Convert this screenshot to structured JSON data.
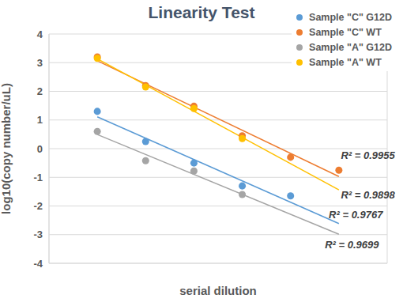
{
  "chart_data": {
    "type": "scatter",
    "title": "Linearity Test",
    "x_label": "serial dilution",
    "y_label": "log10(copy number/uL)",
    "x": [
      1,
      2,
      3,
      4,
      5,
      6
    ],
    "xlim": [
      0,
      7
    ],
    "xticks": [
      0,
      1,
      2,
      3,
      4,
      5,
      6,
      7
    ],
    "ylim": [
      -4,
      4
    ],
    "yticks": [
      -4,
      -3,
      -2,
      -1,
      0,
      1,
      2,
      3,
      4
    ],
    "grid": true,
    "legend": "upper right",
    "tick_labels": "y",
    "series": [
      {
        "name": "Sample \"C\" G12D",
        "color": "#5b9bd5",
        "marker": "circle",
        "values": [
          1.3,
          0.25,
          -0.5,
          -1.3,
          -1.65,
          null
        ],
        "annotation": "R² = 0.9767"
      },
      {
        "name": "Sample \"C\" WT",
        "color": "#ed7d31",
        "marker": "circle",
        "values": [
          3.2,
          2.2,
          1.48,
          0.45,
          -0.3,
          -0.75
        ],
        "annotation": "R² = 0.9955"
      },
      {
        "name": "Sample \"A\" G12D",
        "color": "#a5a5a5",
        "marker": "circle",
        "values": [
          0.6,
          -0.42,
          -0.78,
          -1.6,
          null,
          null
        ],
        "annotation": "R² = 0.9699"
      },
      {
        "name": "Sample \"A\" WT",
        "color": "#ffc000",
        "marker": "circle",
        "values": [
          3.15,
          2.15,
          1.4,
          0.35,
          null,
          null
        ],
        "annotation": "R² = 0.9898"
      }
    ]
  }
}
